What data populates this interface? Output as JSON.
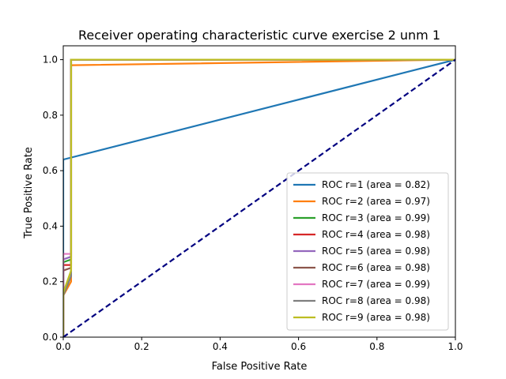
{
  "chart_data": {
    "type": "line",
    "title": "Receiver operating characteristic curve exercise 2 unm 1",
    "xlabel": "False Positive Rate",
    "ylabel": "True Positive Rate",
    "xlim": [
      0.0,
      1.0
    ],
    "ylim": [
      0.0,
      1.05
    ],
    "xticks": [
      0.0,
      0.2,
      0.4,
      0.6,
      0.8,
      1.0
    ],
    "xtick_labels": [
      "0.0",
      "0.2",
      "0.4",
      "0.6",
      "0.8",
      "1.0"
    ],
    "yticks": [
      0.0,
      0.2,
      0.4,
      0.6,
      0.8,
      1.0
    ],
    "ytick_labels": [
      "0.0",
      "0.2",
      "0.4",
      "0.6",
      "0.8",
      "1.0"
    ],
    "grid": false,
    "legend_position": "lower-right",
    "series": [
      {
        "name": "ROC r=1 (area = 0.82)",
        "color": "#1f77b4",
        "points": [
          [
            0,
            0
          ],
          [
            0,
            0.64
          ],
          [
            1,
            1
          ]
        ]
      },
      {
        "name": "ROC r=2 (area = 0.97)",
        "color": "#ff7f0e",
        "points": [
          [
            0,
            0
          ],
          [
            0,
            0.15
          ],
          [
            0.02,
            0.2
          ],
          [
            0.02,
            0.98
          ],
          [
            1,
            1
          ]
        ]
      },
      {
        "name": "ROC r=3 (area = 0.99)",
        "color": "#2ca02c",
        "points": [
          [
            0,
            0
          ],
          [
            0,
            0.27
          ],
          [
            0.02,
            0.28
          ],
          [
            0.02,
            1.0
          ],
          [
            1,
            1
          ]
        ]
      },
      {
        "name": "ROC r=4 (area = 0.98)",
        "color": "#d62728",
        "points": [
          [
            0,
            0
          ],
          [
            0,
            0.26
          ],
          [
            0.02,
            0.26
          ],
          [
            0.02,
            1.0
          ],
          [
            1,
            1
          ]
        ]
      },
      {
        "name": "ROC r=5 (area = 0.98)",
        "color": "#9467bd",
        "points": [
          [
            0,
            0
          ],
          [
            0,
            0.28
          ],
          [
            0.02,
            0.29
          ],
          [
            0.02,
            1.0
          ],
          [
            1,
            1
          ]
        ]
      },
      {
        "name": "ROC r=6 (area = 0.98)",
        "color": "#8c564b",
        "points": [
          [
            0,
            0
          ],
          [
            0,
            0.24
          ],
          [
            0.02,
            0.25
          ],
          [
            0.02,
            1.0
          ],
          [
            1,
            1
          ]
        ]
      },
      {
        "name": "ROC r=7 (area = 0.99)",
        "color": "#e377c2",
        "points": [
          [
            0,
            0
          ],
          [
            0,
            0.3
          ],
          [
            0.02,
            0.3
          ],
          [
            0.02,
            1.0
          ],
          [
            1,
            1
          ]
        ]
      },
      {
        "name": "ROC r=8 (area = 0.98)",
        "color": "#7f7f7f",
        "points": [
          [
            0,
            0
          ],
          [
            0,
            0.15
          ],
          [
            0.02,
            0.22
          ],
          [
            0.02,
            1.0
          ],
          [
            1,
            1
          ]
        ]
      },
      {
        "name": "ROC r=9 (area = 0.98)",
        "color": "#bcbd22",
        "points": [
          [
            0,
            0
          ],
          [
            0,
            0.16
          ],
          [
            0.02,
            0.24
          ],
          [
            0.02,
            1.0
          ],
          [
            1,
            1
          ]
        ]
      }
    ],
    "reference_line": {
      "color": "#000080",
      "style": "dashed",
      "points": [
        [
          0,
          0
        ],
        [
          1,
          1
        ]
      ]
    }
  }
}
